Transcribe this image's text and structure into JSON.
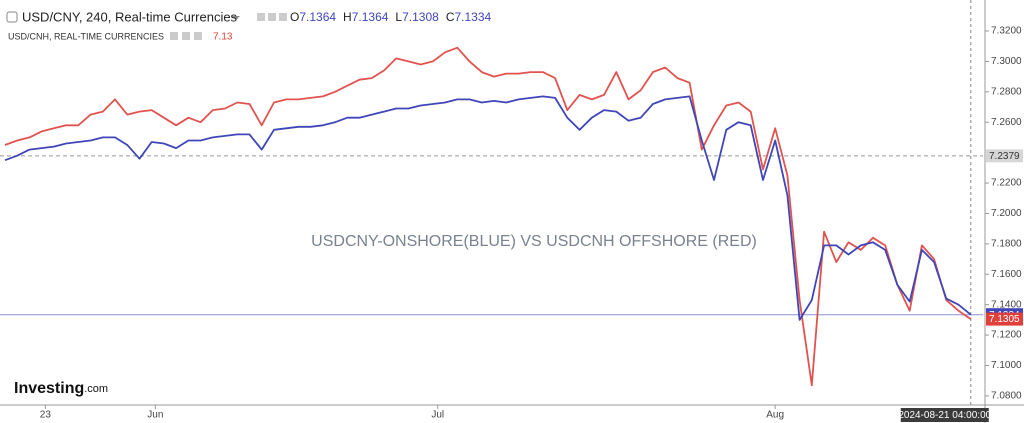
{
  "chart_data": {
    "type": "line",
    "ohlc": [
      {
        "key": "O",
        "value": 7.1364
      },
      {
        "key": "H",
        "value": 7.1364
      },
      {
        "key": "L",
        "value": 7.1308
      },
      {
        "key": "C",
        "value": 7.1334
      }
    ],
    "legend_value": "7.13",
    "annotation": "USDCNY-ONSHORE(BLUE) VS USDCNH OFFSHORE (RED)",
    "logo": {
      "name": "Investing",
      "suffix": ".com"
    },
    "crosshair_label": "2024-08-21 04:00:00",
    "x": [
      0,
      1,
      2,
      3,
      4,
      5,
      6,
      7,
      8,
      9,
      10,
      11,
      12,
      13,
      14,
      15,
      16,
      17,
      18,
      19,
      20,
      21,
      22,
      23,
      24,
      25,
      26,
      27,
      28,
      29,
      30,
      31,
      32,
      33,
      34,
      35,
      36,
      37,
      38,
      39,
      40,
      41,
      42,
      43,
      44,
      45,
      46,
      47,
      48,
      49,
      50,
      51,
      52,
      53,
      54,
      55,
      56,
      57,
      58,
      59,
      60,
      61,
      62,
      63,
      64,
      65,
      66,
      67,
      68,
      69,
      70,
      71,
      72,
      73,
      74,
      75,
      76,
      77,
      78,
      79
    ],
    "xlim": [
      0,
      80
    ],
    "xticks": [
      {
        "value": 3.3,
        "label": "23"
      },
      {
        "value": 12.3,
        "label": "Jun"
      },
      {
        "value": 35.4,
        "label": "Jul"
      },
      {
        "value": 63,
        "label": "Aug"
      }
    ],
    "ylim": [
      7.074,
      7.3404
    ],
    "yticks": [
      {
        "value": 7.32,
        "label": "7.3200"
      },
      {
        "value": 7.3,
        "label": "7.3000"
      },
      {
        "value": 7.28,
        "label": "7.2800"
      },
      {
        "value": 7.26,
        "label": "7.2600"
      },
      {
        "value": 7.22,
        "label": "7.2200"
      },
      {
        "value": 7.2,
        "label": "7.2000"
      },
      {
        "value": 7.18,
        "label": "7.1800"
      },
      {
        "value": 7.16,
        "label": "7.1600"
      },
      {
        "value": 7.14,
        "label": "7.1400"
      },
      {
        "value": 7.12,
        "label": "7.1200"
      },
      {
        "value": 7.1,
        "label": "7.1000"
      },
      {
        "value": 7.08,
        "label": "7.0800"
      }
    ],
    "grid": false,
    "price_labels": [
      {
        "value": 7.2379,
        "color": "#d6d6d6",
        "text_color": "#333333",
        "line": "dashed"
      },
      {
        "value": 7.1334,
        "color": "#3f46b8",
        "text_color": "#ffffff",
        "line": "solid"
      },
      {
        "value": 7.1305,
        "color": "#e0403c",
        "text_color": "#ffffff",
        "line": "none"
      }
    ],
    "series": [
      {
        "name": "USD/CNY, 240, Real-time Currencies",
        "color": "#3f46b8",
        "values": [
          7.235,
          7.238,
          7.242,
          7.243,
          7.244,
          7.246,
          7.247,
          7.248,
          7.25,
          7.25,
          7.245,
          7.236,
          7.247,
          7.246,
          7.243,
          7.248,
          7.248,
          7.25,
          7.251,
          7.252,
          7.252,
          7.242,
          7.255,
          7.256,
          7.257,
          7.257,
          7.258,
          7.26,
          7.263,
          7.263,
          7.265,
          7.267,
          7.269,
          7.269,
          7.271,
          7.272,
          7.273,
          7.275,
          7.275,
          7.273,
          7.274,
          7.273,
          7.275,
          7.276,
          7.277,
          7.276,
          7.263,
          7.255,
          7.263,
          7.268,
          7.267,
          7.261,
          7.263,
          7.272,
          7.275,
          7.276,
          7.277,
          7.248,
          7.222,
          7.255,
          7.26,
          7.258,
          7.222,
          7.248,
          7.212,
          7.13,
          7.143,
          7.179,
          7.179,
          7.173,
          7.179,
          7.181,
          7.176,
          7.153,
          7.142,
          7.176,
          7.168,
          7.144,
          7.14,
          7.1334
        ]
      },
      {
        "name": "USD/CNH, REAL-TIME CURRENCIES",
        "color": "#e0534f",
        "values": [
          7.245,
          7.248,
          7.25,
          7.254,
          7.256,
          7.258,
          7.258,
          7.265,
          7.267,
          7.275,
          7.265,
          7.267,
          7.268,
          7.263,
          7.258,
          7.263,
          7.26,
          7.268,
          7.269,
          7.273,
          7.272,
          7.258,
          7.273,
          7.275,
          7.275,
          7.276,
          7.277,
          7.28,
          7.284,
          7.288,
          7.289,
          7.294,
          7.302,
          7.3,
          7.298,
          7.3,
          7.306,
          7.309,
          7.3,
          7.293,
          7.29,
          7.292,
          7.292,
          7.293,
          7.293,
          7.289,
          7.268,
          7.278,
          7.275,
          7.278,
          7.293,
          7.275,
          7.281,
          7.293,
          7.296,
          7.289,
          7.286,
          7.242,
          7.258,
          7.271,
          7.273,
          7.267,
          7.229,
          7.256,
          7.225,
          7.143,
          7.087,
          7.188,
          7.168,
          7.181,
          7.176,
          7.184,
          7.179,
          7.153,
          7.136,
          7.179,
          7.17,
          7.143,
          7.136,
          7.1305
        ]
      }
    ]
  }
}
